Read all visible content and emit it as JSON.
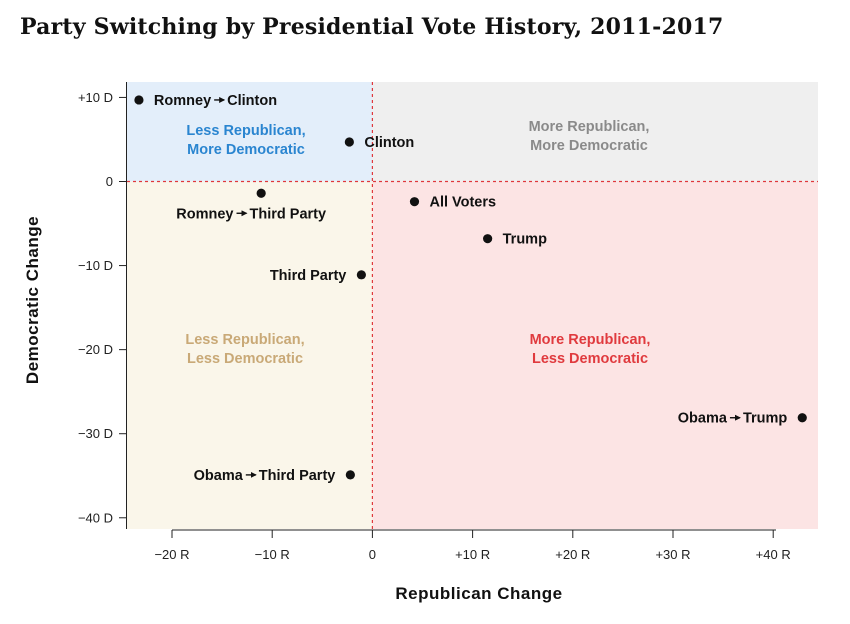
{
  "title": "Party Switching by Presidential Vote History, 2011-2017",
  "colors": {
    "quadrant_top_left": "#e3eefa",
    "quadrant_top_right": "#efefef",
    "quadrant_bottom_left": "#faf6ea",
    "quadrant_bottom_right": "#fce4e4",
    "text_top_left": "#2a85d0",
    "text_top_right": "#8a8a8a",
    "text_bottom_left": "#c9a977",
    "text_bottom_right": "#e03a3e",
    "zero_line": "#e0383c",
    "point": "#111111"
  },
  "chart_data": {
    "type": "scatter",
    "title": "Party Switching by Presidential Vote History, 2011-2017",
    "xlabel": "Republican Change",
    "ylabel": "Democratic Change",
    "xlim": [
      -24,
      44
    ],
    "ylim": [
      -41,
      12
    ],
    "x_ticks": [
      {
        "value": -20,
        "label": "−20 R"
      },
      {
        "value": -10,
        "label": "−10 R"
      },
      {
        "value": 0,
        "label": "0"
      },
      {
        "value": 10,
        "label": "+10 R"
      },
      {
        "value": 20,
        "label": "+20 R"
      },
      {
        "value": 30,
        "label": "+30 R"
      },
      {
        "value": 40,
        "label": "+40 R"
      }
    ],
    "y_ticks": [
      {
        "value": 10,
        "label": "+10 D"
      },
      {
        "value": 0,
        "label": "0"
      },
      {
        "value": -10,
        "label": "−10 D"
      },
      {
        "value": -20,
        "label": "−20 D"
      },
      {
        "value": -30,
        "label": "−30 D"
      },
      {
        "value": -40,
        "label": "−40 D"
      }
    ],
    "quadrants": [
      {
        "id": "top-left",
        "lines": [
          "Less Republican,",
          "More Democratic"
        ]
      },
      {
        "id": "top-right",
        "lines": [
          "More Republican,",
          "More Democratic"
        ]
      },
      {
        "id": "bottom-left",
        "lines": [
          "Less Republican,",
          "Less Democratic"
        ]
      },
      {
        "id": "bottom-right",
        "lines": [
          "More Republican,",
          "Less Democratic"
        ]
      }
    ],
    "points": [
      {
        "from": "Romney",
        "to": "Clinton",
        "x": -23.3,
        "y": 9.7,
        "label_side": "right"
      },
      {
        "label": "Clinton",
        "x": -2.3,
        "y": 4.7,
        "label_side": "right"
      },
      {
        "from": "Romney",
        "to": "Third Party",
        "x": -11.1,
        "y": -1.4,
        "label_side": "below"
      },
      {
        "label": "All Voters",
        "x": 4.2,
        "y": -2.4,
        "label_side": "right"
      },
      {
        "label": "Trump",
        "x": 11.5,
        "y": -6.8,
        "label_side": "right"
      },
      {
        "label": "Third Party",
        "x": -1.1,
        "y": -11.1,
        "label_side": "left"
      },
      {
        "from": "Obama",
        "to": "Trump",
        "x": 42.9,
        "y": -28.1,
        "label_side": "left"
      },
      {
        "from": "Obama",
        "to": "Third Party",
        "x": -2.2,
        "y": -34.9,
        "label_side": "left"
      }
    ]
  }
}
